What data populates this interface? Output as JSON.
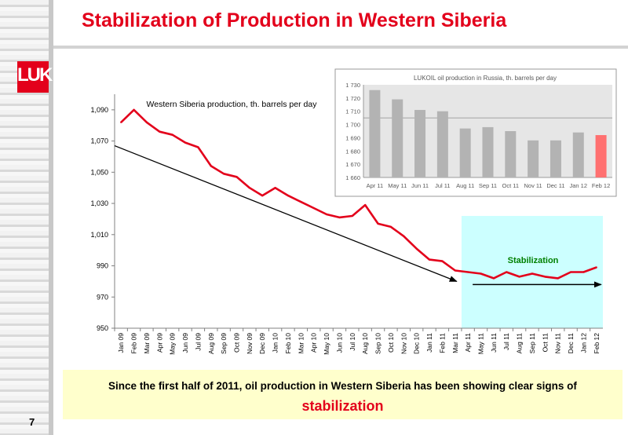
{
  "slide": {
    "title": "Stabilization of Production in Western Siberia",
    "page_number": "7",
    "logo_text": "LUK",
    "colors": {
      "brand_red": "#e3001b",
      "note_bg": "#ffffcc",
      "stab_bg": "#ccffff",
      "stab_label": "#008000"
    },
    "note": {
      "line1": "Since the first half of 2011, oil production in Western Siberia has been showing clear signs of",
      "line2": "stabilization"
    }
  },
  "chart_data": [
    {
      "type": "line",
      "title": "Western Siberia production, th. barrels per day",
      "x": [
        "Jan 09",
        "Feb 09",
        "Mar 09",
        "Apr 09",
        "May 09",
        "Jun 09",
        "Jul 09",
        "Aug 09",
        "Sep 09",
        "Oct 09",
        "Nov 09",
        "Dec 09",
        "Jan 10",
        "Feb 10",
        "Mar 10",
        "Apr 10",
        "May 10",
        "Jun 10",
        "Jul 10",
        "Aug 10",
        "Sep 10",
        "Oct 10",
        "Nov 10",
        "Dec 10",
        "Jan 11",
        "Feb 11",
        "Mar 11",
        "Apr 11",
        "May 11",
        "Jun 11",
        "Jul 11",
        "Aug 11",
        "Sep 11",
        "Oct 11",
        "Nov 11",
        "Dec 11",
        "Jan 12",
        "Feb 12"
      ],
      "series": [
        {
          "color": "#e3001b",
          "values": [
            1082,
            1090,
            1082,
            1076,
            1074,
            1069,
            1066,
            1054,
            1049,
            1047,
            1040,
            1035,
            1040,
            1035,
            1031,
            1027,
            1023,
            1021,
            1022,
            1029,
            1017,
            1015,
            1009,
            1001,
            994,
            993,
            987,
            986,
            985,
            982,
            986,
            983,
            985,
            983,
            982,
            986,
            986,
            989
          ]
        }
      ],
      "yticks": [
        "950",
        "970",
        "990",
        "1,010",
        "1,030",
        "1,050",
        "1,070",
        "1,090"
      ],
      "ylim": [
        950,
        1100
      ],
      "annotations": {
        "stabilization_label": "Stabilization",
        "stabilization_range": [
          "Apr 11",
          "Feb 12"
        ],
        "trend_arrow": {
          "from": [
            "Jan 09",
            1067
          ],
          "to": [
            "Mar 11",
            980
          ]
        },
        "flat_arrow": {
          "from": [
            "Apr 11",
            978
          ],
          "to": [
            "Feb 12",
            978
          ]
        }
      }
    },
    {
      "type": "bar",
      "title": "LUKOIL oil production in Russia, th. barrels per day",
      "categories": [
        "Apr 11",
        "May 11",
        "Jun 11",
        "Jul 11",
        "Aug 11",
        "Sep 11",
        "Oct 11",
        "Nov 11",
        "Dec 11",
        "Jan 12",
        "Feb 12"
      ],
      "values": [
        1726,
        1719,
        1711,
        1710,
        1697,
        1698,
        1695,
        1688,
        1688,
        1694,
        1692
      ],
      "highlight_color": "#ff7070",
      "bar_color": "#b3b3b3",
      "yticks": [
        "1 660",
        "1 670",
        "1 680",
        "1 690",
        "1 700",
        "1 710",
        "1 720",
        "1 730"
      ],
      "ylim": [
        1660,
        1730
      ],
      "reference_line": 1705
    }
  ]
}
